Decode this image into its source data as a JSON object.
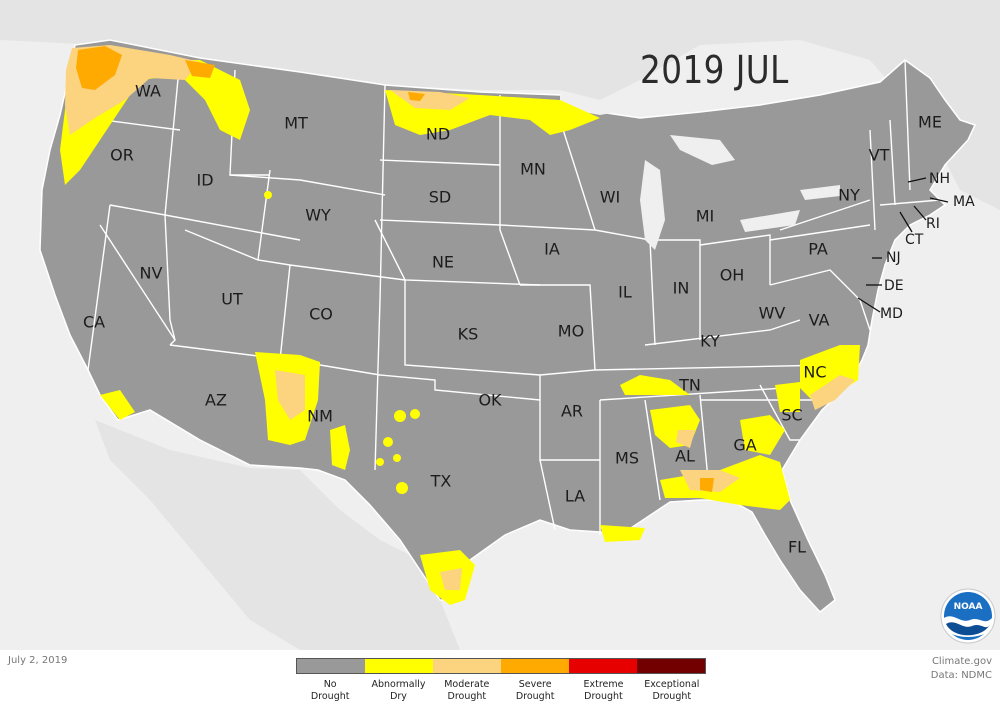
{
  "title": "2019 JUL",
  "date": "July 2, 2019",
  "credit": {
    "line1": "Climate.gov",
    "line2": "Data: NDMC"
  },
  "colors": {
    "background": "#efefef",
    "land": "#a8a8a8",
    "us": "#999999",
    "border": "#ffffff",
    "abnormally_dry": "#ffff00",
    "moderate": "#fcd37f",
    "severe": "#ffaa00",
    "extreme": "#e60000",
    "exceptional": "#730000"
  },
  "legend": [
    {
      "label": "No Drought",
      "color": "#999999"
    },
    {
      "label": "Abnormally Dry",
      "color": "#ffff00"
    },
    {
      "label": "Moderate Drought",
      "color": "#fcd37f"
    },
    {
      "label": "Severe Drought",
      "color": "#ffaa00"
    },
    {
      "label": "Extreme Drought",
      "color": "#e60000"
    },
    {
      "label": "Exceptional Drought",
      "color": "#730000"
    }
  ],
  "states": {
    "WA": "WA",
    "OR": "OR",
    "CA": "CA",
    "ID": "ID",
    "NV": "NV",
    "MT": "MT",
    "WY": "WY",
    "UT": "UT",
    "AZ": "AZ",
    "CO": "CO",
    "NM": "NM",
    "ND": "ND",
    "SD": "SD",
    "NE": "NE",
    "KS": "KS",
    "OK": "OK",
    "TX": "TX",
    "MN": "MN",
    "IA": "IA",
    "MO": "MO",
    "AR": "AR",
    "LA": "LA",
    "WI": "WI",
    "IL": "IL",
    "MI": "MI",
    "IN": "IN",
    "OH": "OH",
    "KY": "KY",
    "TN": "TN",
    "MS": "MS",
    "AL": "AL",
    "GA": "GA",
    "FL": "FL",
    "SC": "SC",
    "NC": "NC",
    "VA": "VA",
    "WV": "WV",
    "PA": "PA",
    "NY": "NY",
    "VT": "VT",
    "ME": "ME",
    "NH": "NH",
    "MA": "MA",
    "RI": "RI",
    "CT": "CT",
    "NJ": "NJ",
    "DE": "DE",
    "MD": "MD"
  },
  "logo_text": "NOAA"
}
